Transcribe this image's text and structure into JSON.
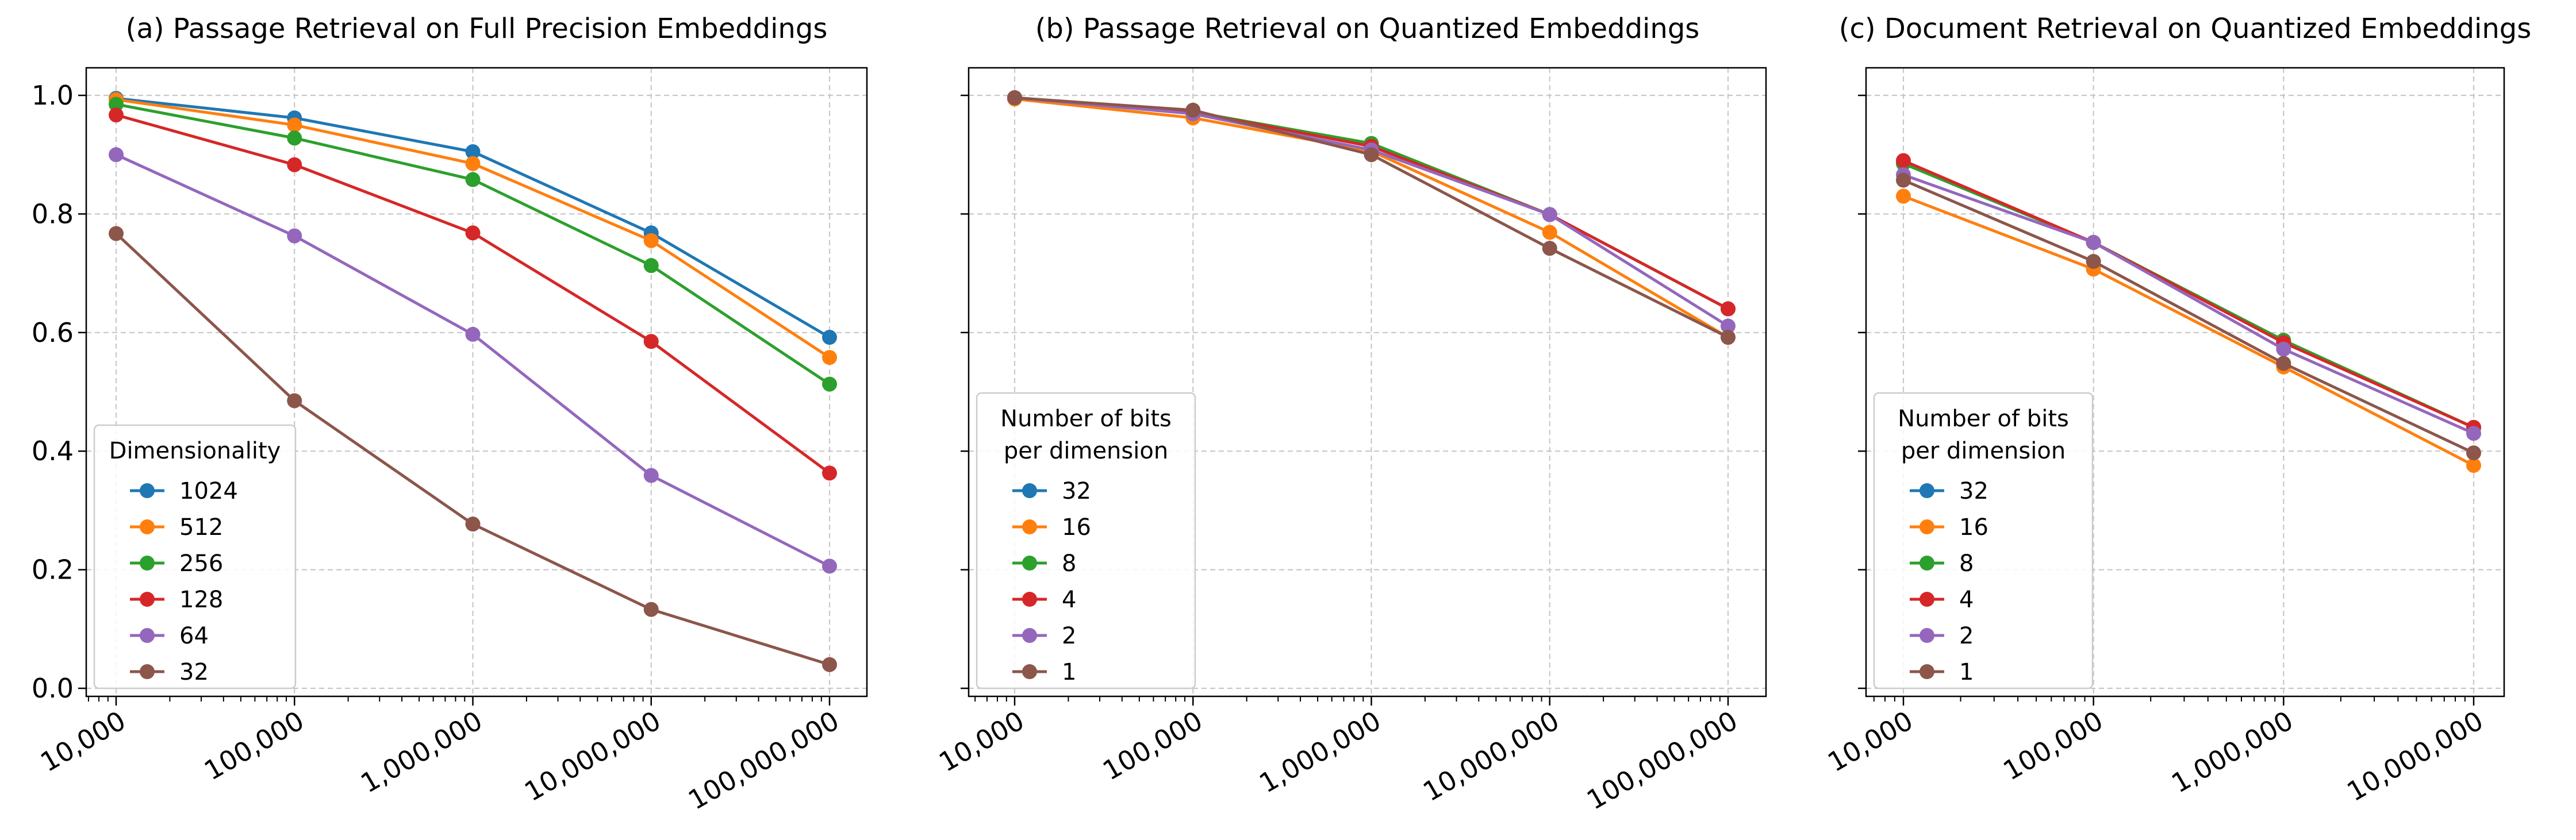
{
  "chart_data": [
    {
      "type": "line",
      "title": "(a) Passage Retrieval on Full Precision Embeddings",
      "x_scale": "log",
      "x": [
        10000,
        100000,
        1000000,
        10000000,
        100000000
      ],
      "x_tick_labels": [
        "10,000",
        "100,000",
        "1,000,000",
        "10,000,000",
        "100,000,000"
      ],
      "ylim": [
        0,
        1.05
      ],
      "y_ticks": [
        "0.0",
        "0.2",
        "0.4",
        "0.6",
        "0.8",
        "1.0"
      ],
      "show_y_tick_labels": true,
      "grid": true,
      "legend": {
        "title": [
          "Dimensionality"
        ],
        "position": "lower-left"
      },
      "series": [
        {
          "name": "1024",
          "color": "#1f77b4",
          "values": [
            0.995,
            0.962,
            0.905,
            0.768,
            0.592
          ]
        },
        {
          "name": "512",
          "color": "#ff7f0e",
          "values": [
            0.993,
            0.95,
            0.885,
            0.755,
            0.558
          ]
        },
        {
          "name": "256",
          "color": "#2ca02c",
          "values": [
            0.985,
            0.928,
            0.858,
            0.713,
            0.513
          ]
        },
        {
          "name": "128",
          "color": "#d62728",
          "values": [
            0.967,
            0.883,
            0.768,
            0.585,
            0.363
          ]
        },
        {
          "name": "64",
          "color": "#9467bd",
          "values": [
            0.9,
            0.763,
            0.597,
            0.359,
            0.206
          ]
        },
        {
          "name": "32",
          "color": "#8c564b",
          "values": [
            0.767,
            0.485,
            0.277,
            0.133,
            0.04
          ]
        }
      ]
    },
    {
      "type": "line",
      "title": "(b) Passage Retrieval on Quantized Embeddings",
      "x_scale": "log",
      "x": [
        10000,
        100000,
        1000000,
        10000000,
        100000000
      ],
      "x_tick_labels": [
        "10,000",
        "100,000",
        "1,000,000",
        "10,000,000",
        "100,000,000"
      ],
      "ylim": [
        0,
        1.05
      ],
      "y_ticks": [
        "0.0",
        "0.2",
        "0.4",
        "0.6",
        "0.8",
        "1.0"
      ],
      "show_y_tick_labels": false,
      "grid": true,
      "legend": {
        "title": [
          "Number of bits",
          "per dimension"
        ],
        "position": "lower-left"
      },
      "series": [
        {
          "name": "32",
          "color": "#1f77b4",
          "values": [
            0.996,
            0.972,
            0.917,
            0.799,
            0.64
          ]
        },
        {
          "name": "16",
          "color": "#ff7f0e",
          "values": [
            0.994,
            0.962,
            0.906,
            0.769,
            0.592
          ]
        },
        {
          "name": "8",
          "color": "#2ca02c",
          "values": [
            0.996,
            0.972,
            0.919,
            0.799,
            0.64
          ]
        },
        {
          "name": "4",
          "color": "#d62728",
          "values": [
            0.996,
            0.972,
            0.914,
            0.799,
            0.64
          ]
        },
        {
          "name": "2",
          "color": "#9467bd",
          "values": [
            0.996,
            0.969,
            0.908,
            0.799,
            0.611
          ]
        },
        {
          "name": "1",
          "color": "#8c564b",
          "values": [
            0.996,
            0.975,
            0.9,
            0.742,
            0.592
          ]
        }
      ]
    },
    {
      "type": "line",
      "title": "(c) Document Retrieval on Quantized Embeddings",
      "x_scale": "log",
      "x": [
        10000,
        100000,
        1000000,
        10000000
      ],
      "x_tick_labels": [
        "10,000",
        "100,000",
        "1,000,000",
        "10,000,000"
      ],
      "ylim": [
        0,
        1.05
      ],
      "y_ticks": [
        "0.0",
        "0.2",
        "0.4",
        "0.6",
        "0.8",
        "1.0"
      ],
      "show_y_tick_labels": false,
      "grid": true,
      "legend": {
        "title": [
          "Number of bits",
          "per dimension"
        ],
        "position": "lower-left"
      },
      "series": [
        {
          "name": "32",
          "color": "#1f77b4",
          "values": [
            0.885,
            0.752,
            0.585,
            0.44
          ]
        },
        {
          "name": "16",
          "color": "#ff7f0e",
          "values": [
            0.83,
            0.707,
            0.542,
            0.376
          ]
        },
        {
          "name": "8",
          "color": "#2ca02c",
          "values": [
            0.885,
            0.752,
            0.587,
            0.44
          ]
        },
        {
          "name": "4",
          "color": "#d62728",
          "values": [
            0.89,
            0.752,
            0.583,
            0.44
          ]
        },
        {
          "name": "2",
          "color": "#9467bd",
          "values": [
            0.866,
            0.752,
            0.572,
            0.43
          ]
        },
        {
          "name": "1",
          "color": "#8c564b",
          "values": [
            0.857,
            0.72,
            0.548,
            0.397
          ]
        }
      ]
    }
  ]
}
